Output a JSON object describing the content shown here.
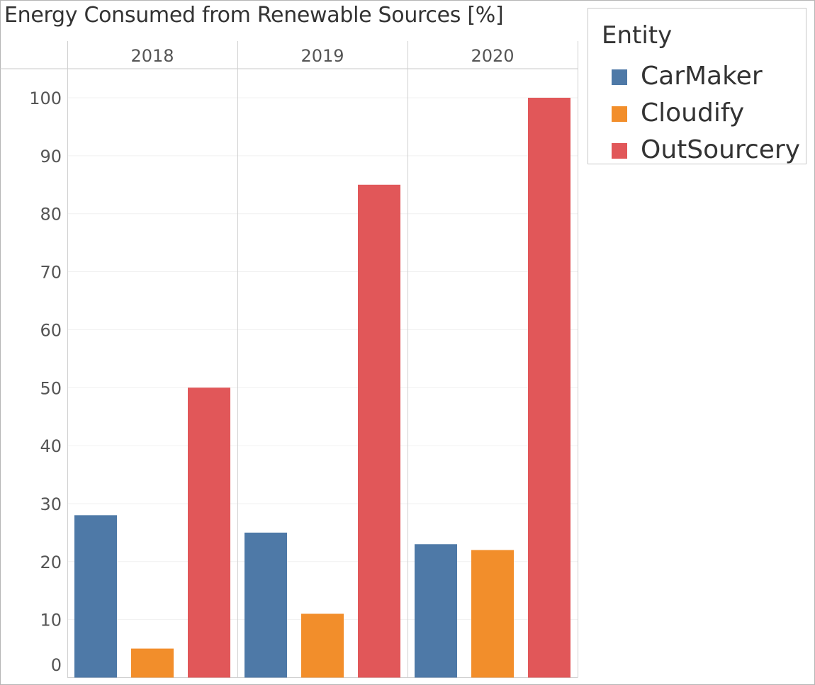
{
  "chart_data": {
    "type": "bar",
    "title": "Energy Consumed from Renewable Sources [%]",
    "categories": [
      "2018",
      "2019",
      "2020"
    ],
    "series": [
      {
        "name": "CarMaker",
        "color": "#4e79a7",
        "values": [
          28,
          25,
          23
        ]
      },
      {
        "name": "Cloudify",
        "color": "#f28e2b",
        "values": [
          5,
          11,
          22
        ]
      },
      {
        "name": "OutSourcery",
        "color": "#e15759",
        "values": [
          50,
          85,
          100
        ]
      }
    ],
    "yticks": [
      "0",
      "10",
      "20",
      "30",
      "40",
      "50",
      "60",
      "70",
      "80",
      "90",
      "100"
    ],
    "ylim": [
      0,
      100
    ],
    "grid": true,
    "legend": {
      "title": "Entity",
      "placement": "right"
    }
  }
}
